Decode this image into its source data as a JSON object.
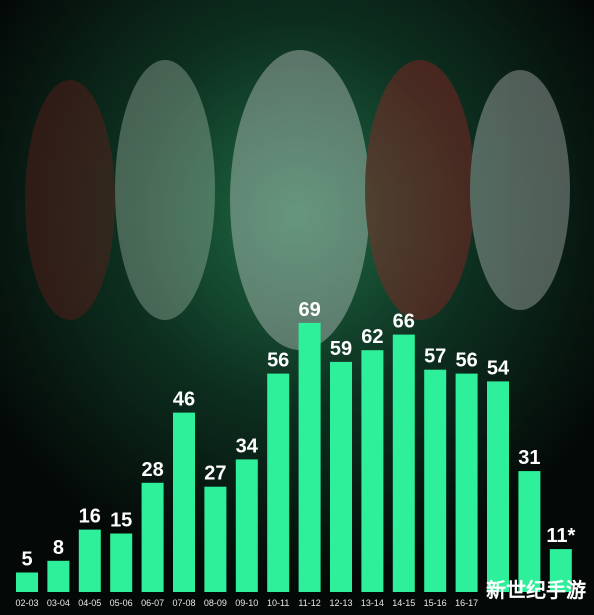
{
  "chart_data": {
    "type": "bar",
    "categories": [
      "02-03",
      "03-04",
      "04-05",
      "05-06",
      "06-07",
      "07-08",
      "08-09",
      "09-10",
      "10-11",
      "11-12",
      "12-13",
      "13-14",
      "14-15",
      "15-16",
      "16-17",
      null,
      null,
      null
    ],
    "values": [
      5,
      8,
      16,
      15,
      28,
      46,
      27,
      34,
      56,
      69,
      59,
      62,
      66,
      57,
      56,
      54,
      31,
      11
    ],
    "value_labels": [
      "5",
      "8",
      "16",
      "15",
      "28",
      "46",
      "27",
      "34",
      "56",
      "69",
      "59",
      "62",
      "66",
      "57",
      "56",
      "54",
      "31",
      "11*"
    ],
    "color": "#2ff09a",
    "watermark": "新世纪手游"
  }
}
